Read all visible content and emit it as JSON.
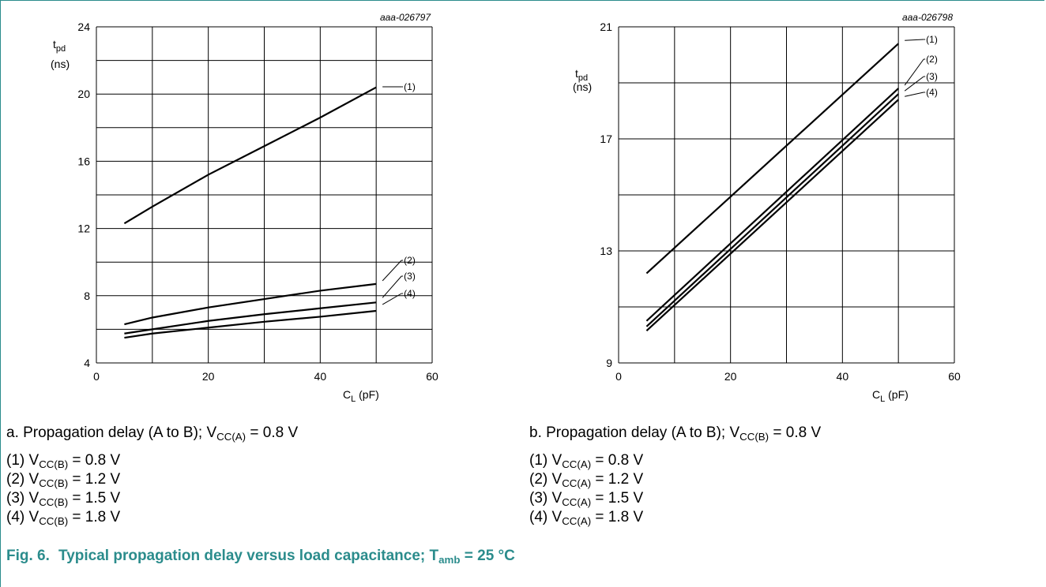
{
  "chart_data": [
    {
      "type": "line",
      "id": "aaa-026797",
      "xlabel": "C",
      "xlabel_sub": "L",
      "xlabel_unit": "(pF)",
      "ylabel": "t",
      "ylabel_sub": "pd",
      "ylabel_unit": "(ns)",
      "xlim": [
        0,
        60
      ],
      "ylim": [
        4,
        24
      ],
      "xticks": [
        0,
        20,
        40,
        60
      ],
      "yticks": [
        4,
        8,
        12,
        16,
        20,
        24
      ],
      "grid": true,
      "series": [
        {
          "name": "(1)",
          "x": [
            5,
            10,
            20,
            30,
            40,
            50
          ],
          "y": [
            12.3,
            13.3,
            15.2,
            16.9,
            18.6,
            20.4
          ]
        },
        {
          "name": "(2)",
          "x": [
            5,
            10,
            20,
            30,
            40,
            50
          ],
          "y": [
            6.3,
            6.7,
            7.3,
            7.8,
            8.3,
            8.7
          ]
        },
        {
          "name": "(3)",
          "x": [
            5,
            10,
            20,
            30,
            40,
            50
          ],
          "y": [
            5.75,
            6.0,
            6.5,
            6.9,
            7.25,
            7.6
          ]
        },
        {
          "name": "(4)",
          "x": [
            5,
            10,
            20,
            30,
            40,
            50
          ],
          "y": [
            5.5,
            5.75,
            6.1,
            6.45,
            6.75,
            7.1
          ]
        }
      ]
    },
    {
      "type": "line",
      "id": "aaa-026798",
      "xlabel": "C",
      "xlabel_sub": "L",
      "xlabel_unit": "(pF)",
      "ylabel": "t",
      "ylabel_sub": "pd",
      "ylabel_unit": "(ns)",
      "xlim": [
        0,
        60
      ],
      "ylim": [
        9,
        21
      ],
      "xticks": [
        0,
        20,
        40,
        60
      ],
      "yticks": [
        9,
        13,
        17,
        21
      ],
      "grid": true,
      "series": [
        {
          "name": "(1)",
          "x": [
            5,
            50
          ],
          "y": [
            12.2,
            20.4
          ]
        },
        {
          "name": "(2)",
          "x": [
            5,
            50
          ],
          "y": [
            10.5,
            18.8
          ]
        },
        {
          "name": "(3)",
          "x": [
            5,
            50
          ],
          "y": [
            10.3,
            18.6
          ]
        },
        {
          "name": "(4)",
          "x": [
            5,
            50
          ],
          "y": [
            10.15,
            18.4
          ]
        }
      ]
    }
  ],
  "captions": {
    "a": {
      "prefix": "a. Propagation delay (A to B); V",
      "sub": "CC(A)",
      "suffix": " = 0.8 V"
    },
    "b": {
      "prefix": "b. Propagation delay (A to B); V",
      "sub": "CC(B)",
      "suffix": " = 0.8 V"
    }
  },
  "legend_a": [
    {
      "num": "(1) V",
      "sub": "CC(B)",
      "val": " = 0.8 V"
    },
    {
      "num": "(2) V",
      "sub": "CC(B)",
      "val": " = 1.2 V"
    },
    {
      "num": "(3) V",
      "sub": "CC(B)",
      "val": " = 1.5 V"
    },
    {
      "num": "(4) V",
      "sub": "CC(B)",
      "val": " = 1.8 V"
    }
  ],
  "legend_b": [
    {
      "num": "(1) V",
      "sub": "CC(A)",
      "val": " = 0.8 V"
    },
    {
      "num": "(2) V",
      "sub": "CC(A)",
      "val": " = 1.2 V"
    },
    {
      "num": "(3) V",
      "sub": "CC(A)",
      "val": " = 1.5 V"
    },
    {
      "num": "(4) V",
      "sub": "CC(A)",
      "val": " = 1.8 V"
    }
  ],
  "figure": {
    "number": "Fig. 6.",
    "title_prefix": "Typical propagation delay versus load capacitance; T",
    "title_sub": "amb",
    "title_suffix": " = 25 °C"
  },
  "colors": {
    "line": "#000000",
    "grid": "#000000",
    "accent": "#2b8c8c"
  }
}
